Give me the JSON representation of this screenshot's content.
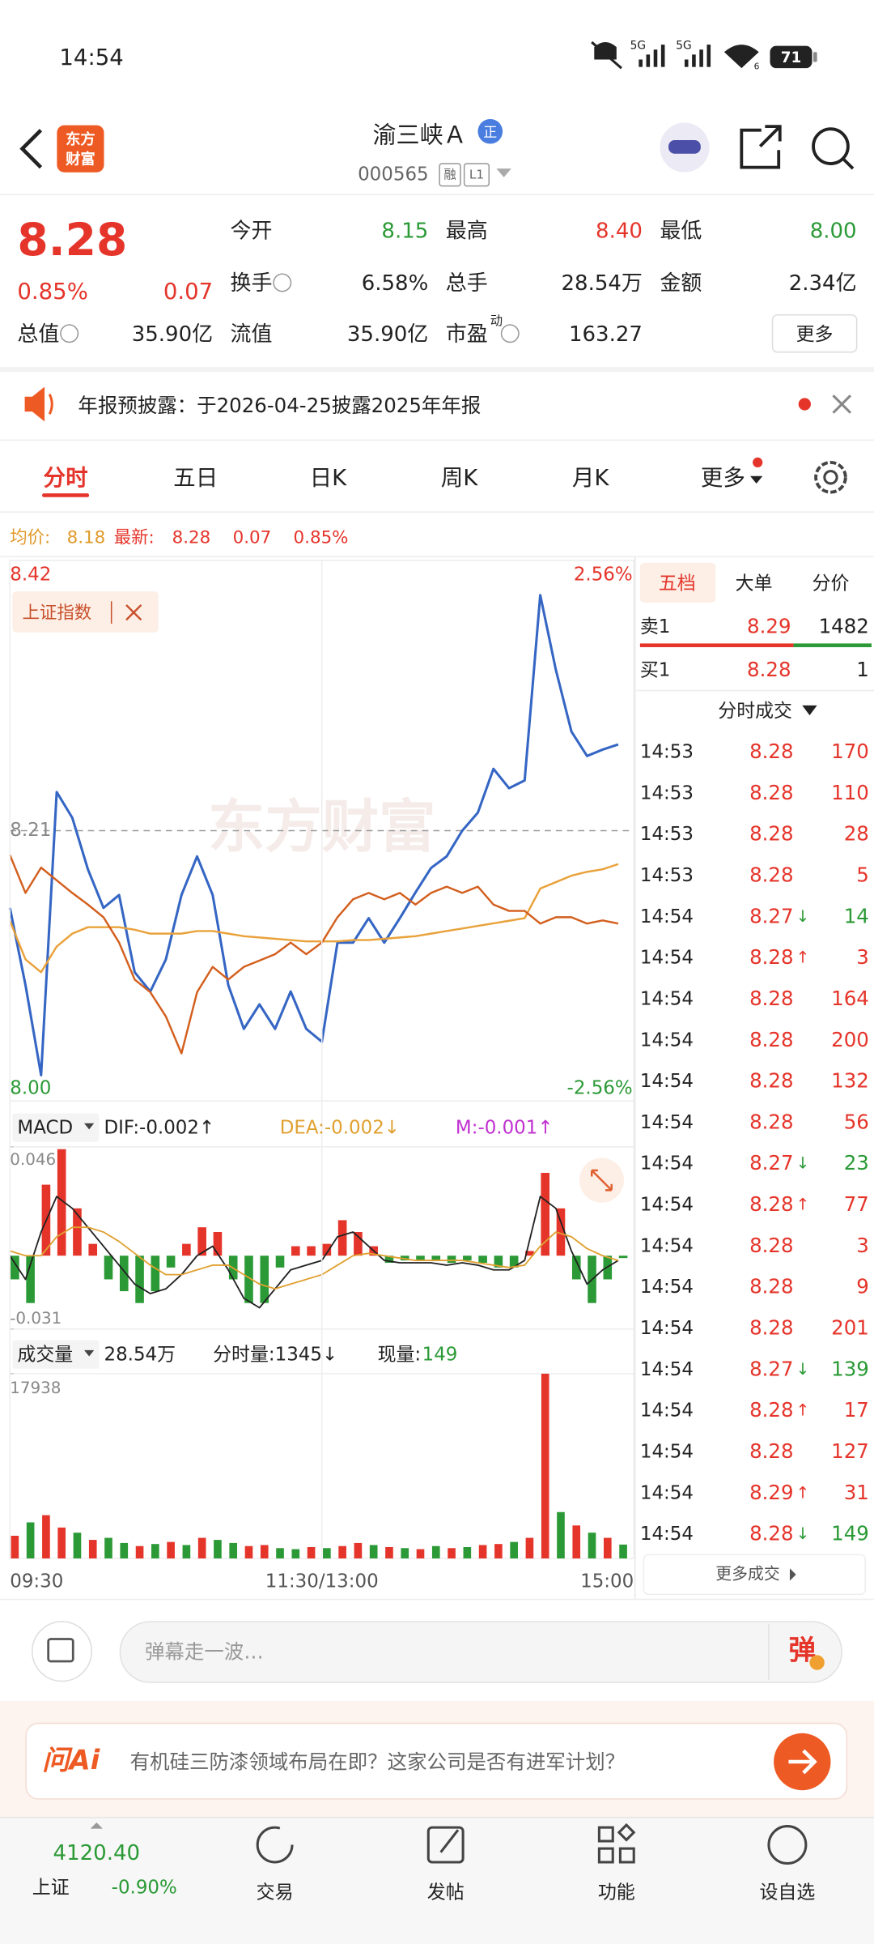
{
  "status_bar": {
    "time": "14:54",
    "network": [
      "5G",
      "5G"
    ],
    "wifi": "6",
    "battery": "71"
  },
  "header": {
    "logo": [
      "东方",
      "财富"
    ],
    "name": "渝三峡Ａ",
    "tag": "正",
    "code": "000565",
    "badges": [
      "融",
      "L1"
    ]
  },
  "quote": {
    "price": "8.28",
    "change_pct": "0.85%",
    "change": "0.07",
    "more": "更多",
    "fields": [
      {
        "label": "今开",
        "value": "8.15",
        "color": "#2b9a36"
      },
      {
        "label": "最高",
        "value": "8.40",
        "color": "#e5352b"
      },
      {
        "label": "最低",
        "value": "8.00",
        "color": "#2b9a36"
      },
      {
        "label": "换手",
        "value": "6.58%",
        "color": "#222222"
      },
      {
        "label": "总手",
        "value": "28.54万",
        "color": "#222222"
      },
      {
        "label": "金额",
        "value": "2.34亿",
        "color": "#222222"
      },
      {
        "label": "总值",
        "value": "35.90亿",
        "color": "#222222"
      },
      {
        "label": "流值",
        "value": "35.90亿",
        "color": "#222222"
      },
      {
        "label": "市盈",
        "sup": "动",
        "value": "163.27",
        "color": "#222222"
      }
    ]
  },
  "notice": "年报预披露：于2026-04-25披露2025年年报",
  "tabs": [
    "分时",
    "五日",
    "日K",
    "周K",
    "月K",
    "更多"
  ],
  "info_line": {
    "avg_label": "均价:",
    "avg": "8.18",
    "latest_label": "最新:",
    "latest": "8.28",
    "change": "0.07",
    "pct": "0.85%"
  },
  "index_tag": "上证指数",
  "macd_header": {
    "selector": "MACD",
    "dif": "DIF:-0.002↑",
    "dea": "DEA:-0.002↓",
    "m": "M:-0.001↑"
  },
  "volume_header": {
    "selector": "成交量",
    "total": "28.54万",
    "minute": "分时量:1345↓",
    "now_label": "现量:",
    "now": "149"
  },
  "chart_data": [
    {
      "type": "line",
      "watermark": "东方财富",
      "x": [
        0,
        6,
        12,
        18,
        24,
        30,
        36,
        42,
        48,
        54,
        60,
        66,
        72,
        78,
        84,
        90,
        96,
        102,
        108,
        114,
        120,
        126,
        132,
        138,
        144,
        150,
        156,
        162,
        168,
        174,
        180,
        186,
        192,
        198,
        204,
        210,
        216,
        222,
        228,
        234
      ],
      "xlim": [
        0,
        240
      ],
      "ylim": [
        8.0,
        8.42
      ],
      "yticks": [
        {
          "value": 8.0,
          "label": "8.00"
        },
        8.21,
        8.42
      ],
      "y2lim": [
        -2.56,
        2.56
      ],
      "y2ticks": [
        {
          "value": -2.56,
          "label": "-2.56%"
        },
        {
          "value": 2.56,
          "label": "2.56%"
        }
      ],
      "grid": true,
      "series": [
        {
          "color": "#3566c4",
          "values": [
            8.15,
            8.09,
            8.02,
            8.24,
            8.22,
            8.18,
            8.15,
            8.16,
            8.1,
            8.085,
            8.11,
            8.16,
            8.19,
            8.16,
            8.09,
            8.056,
            8.075,
            8.056,
            8.085,
            8.056,
            8.046,
            8.123,
            8.123,
            8.142,
            8.123,
            8.142,
            8.162,
            8.181,
            8.19,
            8.21,
            8.224,
            8.258,
            8.243,
            8.249,
            8.393,
            8.335,
            8.287,
            8.268,
            8.273,
            8.277
          ]
        },
        {
          "color": "#e9a23b",
          "values": [
            8.14,
            8.11,
            8.1,
            8.12,
            8.13,
            8.135,
            8.135,
            8.135,
            8.133,
            8.13,
            8.13,
            8.13,
            8.132,
            8.132,
            8.13,
            8.128,
            8.127,
            8.126,
            8.125,
            8.124,
            8.124,
            8.124,
            8.125,
            8.125,
            8.126,
            8.127,
            8.128,
            8.13,
            8.132,
            8.134,
            8.136,
            8.138,
            8.14,
            8.142,
            8.165,
            8.17,
            8.175,
            8.178,
            8.18,
            8.184
          ]
        },
        {
          "name": "上证指数",
          "color": "#d35f1e",
          "axis": "y2",
          "values": [
            -0.23,
            -0.59,
            -0.35,
            -0.47,
            -0.59,
            -0.7,
            -0.82,
            -1.06,
            -1.41,
            -1.53,
            -1.76,
            -2.11,
            -1.53,
            -1.29,
            -1.41,
            -1.29,
            -1.23,
            -1.17,
            -1.06,
            -1.17,
            -1.06,
            -0.82,
            -0.65,
            -0.59,
            -0.65,
            -0.59,
            -0.7,
            -0.59,
            -0.53,
            -0.59,
            -0.53,
            -0.7,
            -0.76,
            -0.76,
            -0.88,
            -0.82,
            -0.82,
            -0.88,
            -0.85,
            -0.88
          ]
        }
      ]
    },
    {
      "type": "macd",
      "x": [
        0,
        6,
        12,
        18,
        24,
        30,
        36,
        42,
        48,
        54,
        60,
        66,
        72,
        78,
        84,
        90,
        96,
        102,
        108,
        114,
        120,
        126,
        132,
        138,
        144,
        150,
        156,
        162,
        168,
        174,
        180,
        186,
        192,
        198,
        204,
        210,
        216,
        222,
        228,
        234
      ],
      "xlim": [
        0,
        240
      ],
      "ylim": [
        -0.031,
        0.046
      ],
      "yticks": [
        -0.031,
        0.046
      ],
      "positive_color": "#e5352b",
      "negative_color": "#2b9a36",
      "series": [
        {
          "color": "#222222",
          "values": [
            0,
            -0.01,
            0.01,
            0.025,
            0.02,
            0.012,
            0.004,
            -0.004,
            -0.012,
            -0.016,
            -0.014,
            -0.008,
            0,
            0.004,
            -0.006,
            -0.018,
            -0.022,
            -0.014,
            -0.006,
            -0.004,
            -0.002,
            0.008,
            0.01,
            0.004,
            -0.002,
            -0.003,
            -0.003,
            -0.003,
            -0.004,
            -0.003,
            -0.004,
            -0.006,
            -0.006,
            -0.002,
            0.025,
            0.02,
            0.002,
            -0.012,
            -0.006,
            -0.002
          ]
        },
        {
          "color": "#e0a030",
          "values": [
            0.002,
            0,
            0,
            0.008,
            0.012,
            0.012,
            0.01,
            0.006,
            0.001,
            -0.004,
            -0.008,
            -0.008,
            -0.006,
            -0.004,
            -0.004,
            -0.008,
            -0.012,
            -0.014,
            -0.012,
            -0.01,
            -0.008,
            -0.004,
            0,
            0.001,
            0,
            -0.001,
            -0.002,
            -0.002,
            -0.002,
            -0.002,
            -0.003,
            -0.004,
            -0.005,
            -0.004,
            0.004,
            0.01,
            0.008,
            0.003,
            0,
            -0.002
          ]
        },
        {
          "values": [
            -0.01,
            -0.02,
            0.03,
            0.045,
            0.02,
            0.005,
            -0.01,
            -0.015,
            -0.02,
            -0.015,
            -0.005,
            0.005,
            0.012,
            0.01,
            -0.01,
            -0.02,
            -0.02,
            -0.005,
            0.004,
            0.004,
            0.005,
            0.015,
            0.01,
            0.004,
            -0.003,
            -0.002,
            -0.002,
            -0.002,
            -0.003,
            -0.002,
            -0.003,
            -0.005,
            -0.005,
            0.002,
            0.035,
            0.02,
            -0.01,
            -0.02,
            -0.01,
            -0.001
          ]
        }
      ]
    },
    {
      "type": "bar",
      "x": [
        0,
        6,
        12,
        18,
        24,
        30,
        36,
        42,
        48,
        54,
        60,
        66,
        72,
        78,
        84,
        90,
        96,
        102,
        108,
        114,
        120,
        126,
        132,
        138,
        144,
        150,
        156,
        162,
        168,
        174,
        180,
        186,
        192,
        198,
        204,
        210,
        216,
        222,
        228,
        234
      ],
      "xlim": [
        0,
        240
      ],
      "xticks": [
        {
          "value": 0,
          "label": "09:30"
        },
        {
          "value": 120,
          "label": "11:30/13:00"
        },
        {
          "value": 240,
          "label": "15:00"
        }
      ],
      "ylim": [
        0,
        17938
      ],
      "yticks": [
        17938
      ],
      "values": [
        2200,
        3500,
        4200,
        3000,
        2500,
        1800,
        2000,
        1500,
        1200,
        1400,
        1600,
        1300,
        2000,
        1800,
        1500,
        1200,
        1300,
        1000,
        900,
        1100,
        1000,
        1200,
        1500,
        1300,
        1100,
        1000,
        900,
        1200,
        1000,
        1100,
        1300,
        1400,
        1600,
        2000,
        17938,
        4500,
        3200,
        2500,
        2000,
        1345
      ],
      "colors": [
        "#e5352b",
        "#2b9a36",
        "#e5352b",
        "#e5352b",
        "#2b9a36",
        "#e5352b",
        "#2b9a36",
        "#2b9a36",
        "#e5352b",
        "#2b9a36",
        "#e5352b",
        "#2b9a36",
        "#e5352b",
        "#2b9a36",
        "#2b9a36",
        "#e5352b",
        "#e5352b",
        "#2b9a36",
        "#2b9a36",
        "#e5352b",
        "#2b9a36",
        "#e5352b",
        "#e5352b",
        "#2b9a36",
        "#e5352b",
        "#2b9a36",
        "#e5352b",
        "#2b9a36",
        "#e5352b",
        "#2b9a36",
        "#e5352b",
        "#e5352b",
        "#2b9a36",
        "#e5352b",
        "#e5352b",
        "#2b9a36",
        "#e5352b",
        "#2b9a36",
        "#e5352b",
        "#2b9a36"
      ]
    }
  ],
  "order_book": {
    "tabs": [
      "五档",
      "大单",
      "分价"
    ],
    "levels": [
      [
        "卖1",
        "8.29",
        "1482"
      ],
      [
        "买1",
        "8.28",
        "1"
      ]
    ]
  },
  "trades": {
    "title": "分时成交",
    "more": "更多成交",
    "rows": [
      {
        "time": "14:53",
        "price": "8.28",
        "volume": "170"
      },
      {
        "time": "14:53",
        "price": "8.28",
        "volume": "110"
      },
      {
        "time": "14:53",
        "price": "8.28",
        "volume": "28"
      },
      {
        "time": "14:53",
        "price": "8.28",
        "volume": "5"
      },
      {
        "time": "14:54",
        "price": "8.27",
        "arrow": "↓",
        "volume": "14"
      },
      {
        "time": "14:54",
        "price": "8.28",
        "arrow": "↑",
        "volume": "3"
      },
      {
        "time": "14:54",
        "price": "8.28",
        "volume": "164"
      },
      {
        "time": "14:54",
        "price": "8.28",
        "volume": "200"
      },
      {
        "time": "14:54",
        "price": "8.28",
        "volume": "132"
      },
      {
        "time": "14:54",
        "price": "8.28",
        "volume": "56"
      },
      {
        "time": "14:54",
        "price": "8.27",
        "arrow": "↓",
        "volume": "23"
      },
      {
        "time": "14:54",
        "price": "8.28",
        "arrow": "↑",
        "volume": "77"
      },
      {
        "time": "14:54",
        "price": "8.28",
        "volume": "3"
      },
      {
        "time": "14:54",
        "price": "8.28",
        "volume": "9"
      },
      {
        "time": "14:54",
        "price": "8.28",
        "volume": "201"
      },
      {
        "time": "14:54",
        "price": "8.27",
        "arrow": "↓",
        "volume": "139"
      },
      {
        "time": "14:54",
        "price": "8.28",
        "arrow": "↑",
        "volume": "17"
      },
      {
        "time": "14:54",
        "price": "8.28",
        "volume": "127"
      },
      {
        "time": "14:54",
        "price": "8.29",
        "arrow": "↑",
        "volume": "31"
      },
      {
        "time": "14:54",
        "price": "8.28",
        "arrow": "↓",
        "volume": "149"
      }
    ]
  },
  "comment": {
    "placeholder": "弹幕走一波…",
    "button": "弹"
  },
  "ai": {
    "logo": "问Ai",
    "question": "有机硅三防漆领域布局在即？这家公司是否有进军计划？"
  },
  "tab_bar": {
    "index_value": "4120.40",
    "index_name": "上证",
    "index_change": "-0.90%",
    "items": [
      "交易",
      "发帖",
      "功能",
      "设自选"
    ]
  }
}
